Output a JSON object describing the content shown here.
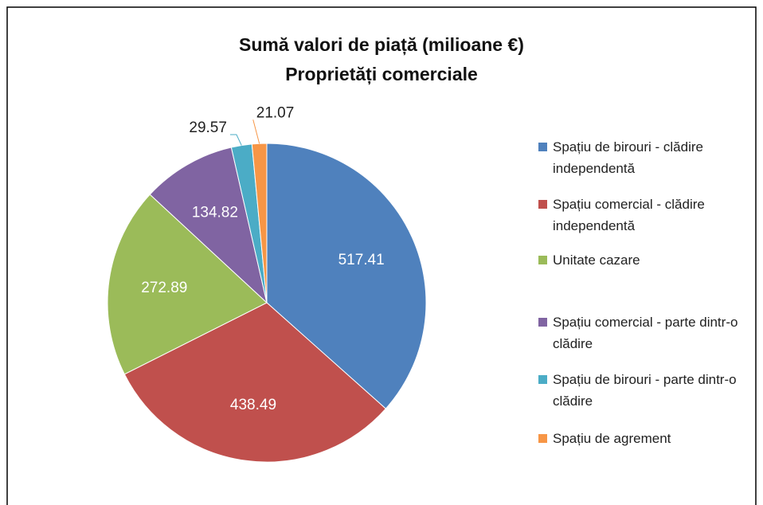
{
  "chart_data": {
    "type": "pie",
    "title": "Sumă valori de piață (milioane €)",
    "subtitle": "Proprietăți comerciale",
    "categories": [
      "Spațiu de birouri - clădire independentă",
      "Spațiu comercial - clădire independentă",
      "Unitate cazare",
      "Spațiu comercial - parte dintr-o clădire",
      "Spațiu de birouri - parte dintr-o clădire",
      "Spațiu de agrement"
    ],
    "values": [
      517.41,
      438.49,
      272.89,
      134.82,
      29.57,
      21.07
    ],
    "colors": [
      "#4f81bd",
      "#c0504d",
      "#9bbb59",
      "#8064a2",
      "#4bacc6",
      "#f79646"
    ],
    "legend": "right"
  }
}
